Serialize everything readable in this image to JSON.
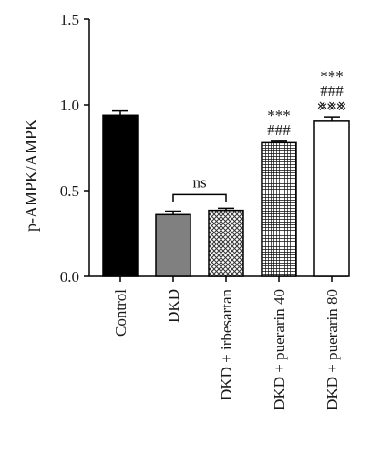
{
  "chart_data": {
    "type": "bar",
    "ylabel": "p-AMPK/AMPK",
    "ylim": [
      0,
      1.5
    ],
    "yticks": [
      0.0,
      0.5,
      1.0,
      1.5
    ],
    "ytick_labels": [
      "0.0",
      "0.5",
      "1.0",
      "1.5"
    ],
    "grid": false,
    "categories": [
      "Control",
      "DKD",
      "DKD + irbesartan",
      "DKD + puerarin 40",
      "DKD + puerarin 80"
    ],
    "values": [
      0.94,
      0.36,
      0.385,
      0.78,
      0.905
    ],
    "errors": [
      0.025,
      0.02,
      0.012,
      0.008,
      0.025
    ],
    "patterns": [
      "solid-black",
      "solid-gray",
      "crosshatch-light",
      "crosshatch-dense",
      "white"
    ],
    "annotations": [
      [],
      [],
      [],
      [
        "***",
        "###"
      ],
      [
        "***",
        "###",
        "⨳⨳⨳"
      ]
    ],
    "comparison": {
      "from": 1,
      "to": 2,
      "label": "ns"
    }
  },
  "colors": {
    "control": "#000000",
    "dkd": "#808080",
    "outline": "#000000",
    "white": "#ffffff"
  }
}
